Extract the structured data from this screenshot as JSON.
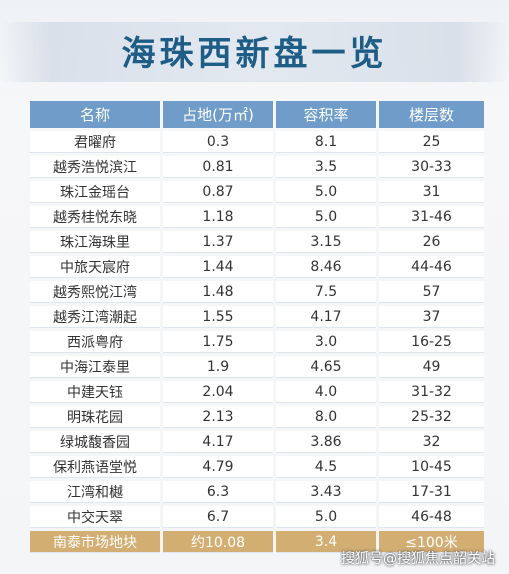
{
  "title": "海珠西新盘一览",
  "table": {
    "headers": [
      "名称",
      "占地(万㎡)",
      "容积率",
      "楼层数"
    ],
    "rows": [
      [
        "君曜府",
        "0.3",
        "8.1",
        "25"
      ],
      [
        "越秀浩悦滨江",
        "0.81",
        "3.5",
        "30-33"
      ],
      [
        "珠江金瑶台",
        "0.87",
        "5.0",
        "31"
      ],
      [
        "越秀桂悦东晓",
        "1.18",
        "5.0",
        "31-46"
      ],
      [
        "珠江海珠里",
        "1.37",
        "3.15",
        "26"
      ],
      [
        "中旅天宸府",
        "1.44",
        "8.46",
        "44-46"
      ],
      [
        "越秀熙悦江湾",
        "1.48",
        "7.5",
        "57"
      ],
      [
        "越秀江湾潮起",
        "1.55",
        "4.17",
        "37"
      ],
      [
        "西派粤府",
        "1.75",
        "3.0",
        "16-25"
      ],
      [
        "中海江泰里",
        "1.9",
        "4.65",
        "49"
      ],
      [
        "中建天钰",
        "2.04",
        "4.0",
        "31-32"
      ],
      [
        "明珠花园",
        "2.13",
        "8.0",
        "25-32"
      ],
      [
        "绿城馥香园",
        "4.17",
        "3.86",
        "32"
      ],
      [
        "保利燕语堂悦",
        "4.79",
        "4.5",
        "10-45"
      ],
      [
        "江湾和樾",
        "6.3",
        "3.43",
        "17-31"
      ],
      [
        "中交天翠",
        "6.7",
        "5.0",
        "46-48"
      ]
    ],
    "highlight_row": [
      "南泰市场地块",
      "约10.08",
      "3.4",
      "≤100米"
    ]
  },
  "watermark": "搜狐号@搜狐焦点韶关站",
  "colors": {
    "title": "#1e5d86",
    "header": "#6f9cc8",
    "highlight": "#d3ae73"
  }
}
